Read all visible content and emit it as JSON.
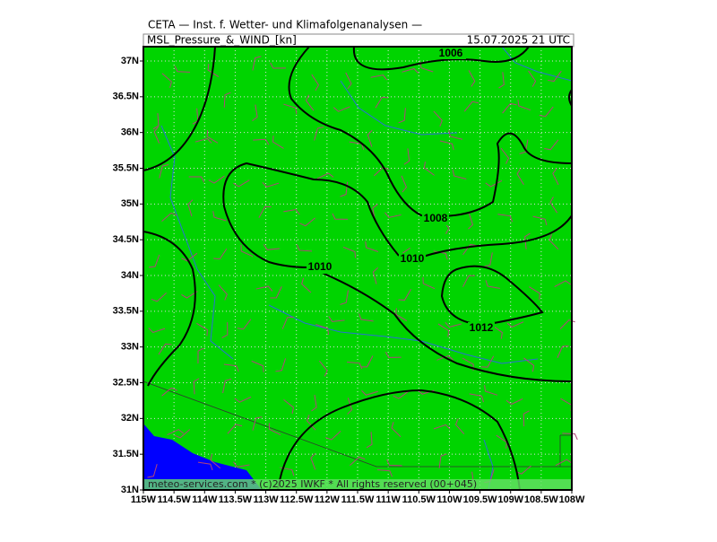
{
  "header": {
    "title": "CETA — Inst. f. Wetter- und Klimafolgenanalysen —",
    "product": "MSL_Pressure_&_WIND_[kn]",
    "valid_time": "15.07.2025 21 UTC"
  },
  "map": {
    "lat_labels": [
      "37N",
      "36.5N",
      "36N",
      "35.5N",
      "35N",
      "34.5N",
      "34N",
      "33.5N",
      "33N",
      "32.5N",
      "32N",
      "31.5N",
      "31N"
    ],
    "lon_labels": [
      "115W",
      "114.5W",
      "114W",
      "113.5W",
      "113W",
      "112.5W",
      "112W",
      "111.5W",
      "111W",
      "110.5W",
      "110W",
      "109.5W",
      "109W",
      "108.5W",
      "108W"
    ],
    "isobar_labels": [
      "1006",
      "1008",
      "1010",
      "1010",
      "1012"
    ]
  },
  "footer": "meteo-services.com * (c)2025 IWKF * All rights reserved (00+045)"
}
